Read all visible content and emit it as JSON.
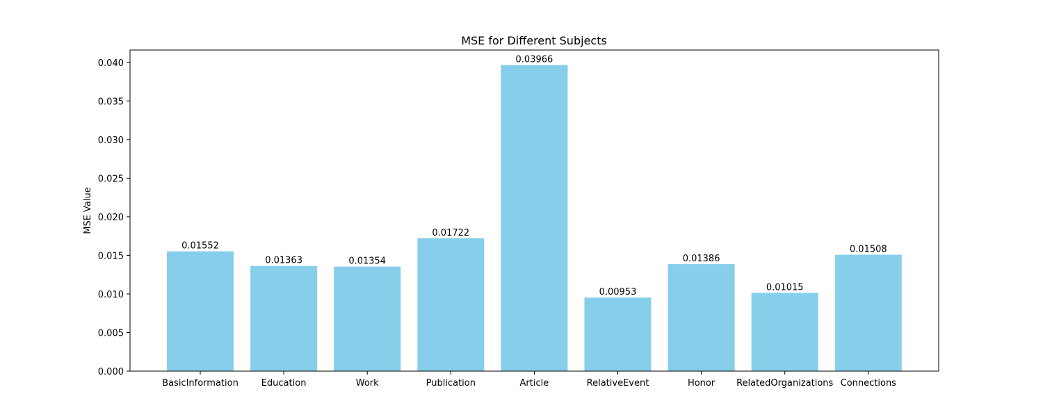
{
  "chart_data": {
    "type": "bar",
    "title": "MSE for Different Subjects",
    "xlabel": "",
    "ylabel": "MSE Value",
    "categories": [
      "BasicInformation",
      "Education",
      "Work",
      "Publication",
      "Article",
      "RelativeEvent",
      "Honor",
      "RelatedOrganizations",
      "Connections"
    ],
    "values": [
      0.01552,
      0.01363,
      0.01354,
      0.01722,
      0.03966,
      0.00953,
      0.01386,
      0.01015,
      0.01508
    ],
    "data_labels": [
      "0.01552",
      "0.01363",
      "0.01354",
      "0.01722",
      "0.03966",
      "0.00953",
      "0.01386",
      "0.01015",
      "0.01508"
    ],
    "ylim": [
      0,
      0.0416
    ],
    "yticks": [
      0.0,
      0.005,
      0.01,
      0.015,
      0.02,
      0.025,
      0.03,
      0.035,
      0.04
    ],
    "ytick_labels": [
      "0.000",
      "0.005",
      "0.010",
      "0.015",
      "0.020",
      "0.025",
      "0.030",
      "0.035",
      "0.040"
    ],
    "bar_color": "#87CEEB",
    "grid": false,
    "legend": "none"
  }
}
